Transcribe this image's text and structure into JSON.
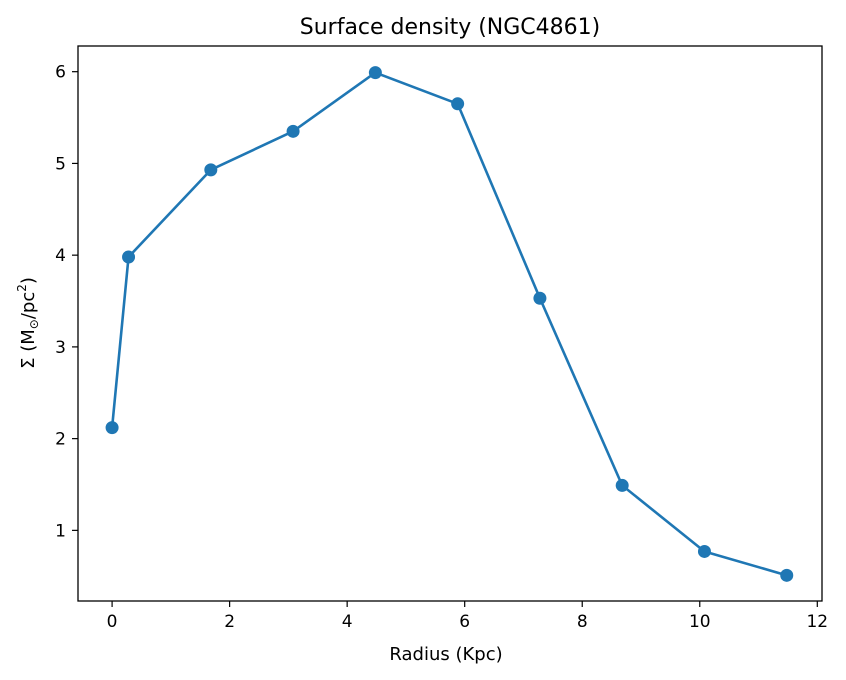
{
  "chart_data": {
    "type": "line",
    "title": "Surface density (NGC4861)",
    "xlabel": "Radius (Kpc)",
    "ylabel": {
      "symbol": "Σ",
      "open": " (M",
      "sub": "⊙",
      "mid": "/pc",
      "sup": "2",
      "close": ")"
    },
    "xlim": [
      -0.58,
      12.08
    ],
    "ylim": [
      0.23,
      6.28
    ],
    "xticks": [
      0,
      2,
      4,
      6,
      8,
      10,
      12
    ],
    "yticks": [
      1,
      2,
      3,
      4,
      5,
      6
    ],
    "grid": false,
    "series": [
      {
        "name": "Surface density",
        "color": "#1f77b4",
        "marker": "circle",
        "x": [
          0.0,
          0.28,
          1.68,
          3.08,
          4.48,
          5.88,
          7.28,
          8.68,
          10.08,
          11.48
        ],
        "y": [
          2.12,
          3.98,
          4.93,
          5.35,
          5.99,
          5.65,
          3.53,
          1.49,
          0.77,
          0.51
        ]
      }
    ]
  }
}
